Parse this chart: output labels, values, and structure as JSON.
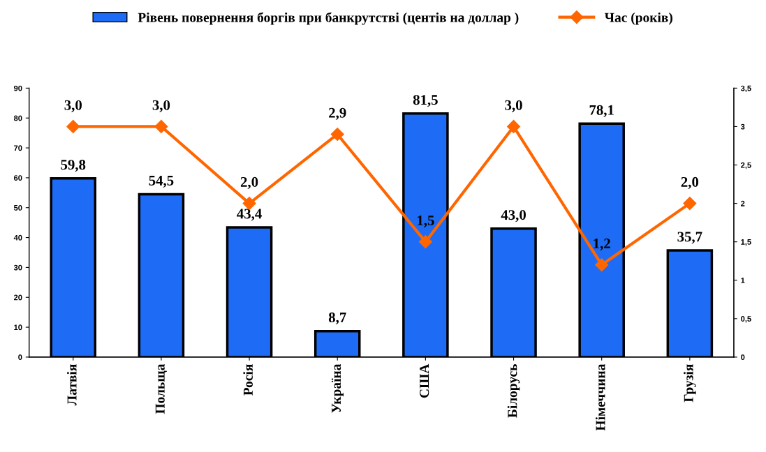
{
  "chart_data": {
    "type": "bar",
    "categories": [
      "Латвія",
      "Польща",
      "Росія",
      "Україна",
      "США",
      "Білорусь",
      "Німеччина",
      "Грузія"
    ],
    "series": [
      {
        "name": "Рівень повернення боргів при банкрутстві (центів на доллар )",
        "color": "#1e6cf5",
        "values": [
          59.8,
          54.5,
          43.4,
          8.7,
          81.5,
          43.0,
          78.1,
          35.7
        ],
        "value_labels": [
          "59,8",
          "54,5",
          "43,4",
          "8,7",
          "81,5",
          "43,0",
          "78,1",
          "35,7"
        ]
      },
      {
        "name": "Час (років)",
        "type": "line",
        "axis": "y2",
        "color": "#ff6600",
        "marker": "diamond",
        "values": [
          3.0,
          3.0,
          2.0,
          2.9,
          1.5,
          3.0,
          1.2,
          2.0
        ],
        "value_labels": [
          "3,0",
          "3,0",
          "2,0",
          "2,9",
          "1,5",
          "3,0",
          "1,2",
          "2,0"
        ]
      }
    ],
    "ylim": [
      0,
      90
    ],
    "yticks": [
      0,
      10,
      20,
      30,
      40,
      50,
      60,
      70,
      80,
      90
    ],
    "y2lim": [
      0,
      3.5
    ],
    "y2ticks": [
      0,
      {
        "value": 0.5,
        "label": "0,5"
      },
      1,
      {
        "value": 1.5,
        "label": "1,5"
      },
      2,
      {
        "value": 2.5,
        "label": "2,5"
      },
      3,
      {
        "value": 3.5,
        "label": "3,5"
      }
    ],
    "legend": "top",
    "grid": false
  }
}
